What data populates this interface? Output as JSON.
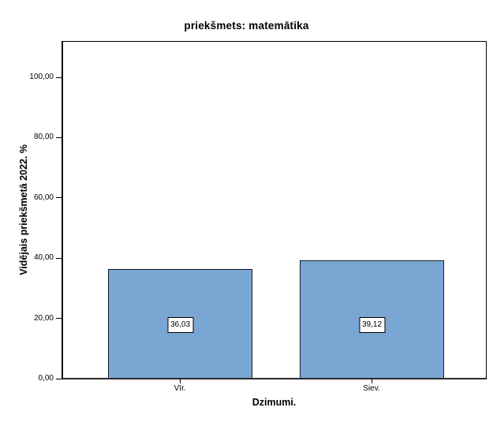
{
  "chart_data": {
    "type": "bar",
    "title": "priekšmets: matemātika",
    "xlabel": "Dzimumi.",
    "ylabel": "Vidējais priekšmetā 2022. %",
    "categories": [
      "Vīr.",
      "Siev."
    ],
    "values": [
      36.03,
      39.12
    ],
    "value_labels": [
      "36,03",
      "39,12"
    ],
    "ytick_values": [
      0,
      20,
      40,
      60,
      80,
      100
    ],
    "ytick_labels": [
      "0,00",
      "20,00",
      "40,00",
      "60,00",
      "80,00",
      "100,00"
    ],
    "ylim": [
      0,
      112.3
    ],
    "grid": "off",
    "legend": "none",
    "bar_fill_color": "#7AA6D4",
    "bar_border_color": "#141c26",
    "value_label_box_bg": "#ffffff"
  }
}
